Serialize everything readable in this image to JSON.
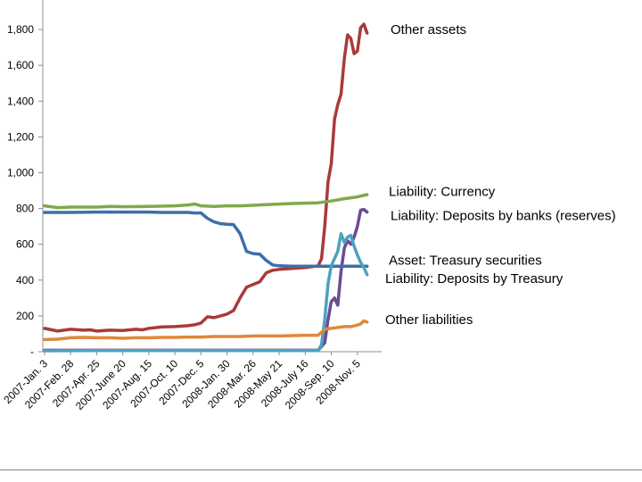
{
  "chart_data": {
    "type": "line",
    "title": "",
    "xlabel": "",
    "ylabel": "",
    "ylim": [
      0,
      1850
    ],
    "y_ticks": [
      {
        "value": 0,
        "label": "-"
      },
      {
        "value": 200,
        "label": "200"
      },
      {
        "value": 400,
        "label": "400"
      },
      {
        "value": 600,
        "label": "600"
      },
      {
        "value": 800,
        "label": "800"
      },
      {
        "value": 1000,
        "label": "1,000"
      },
      {
        "value": 1200,
        "label": "1,200"
      },
      {
        "value": 1400,
        "label": "1,400"
      },
      {
        "value": 1600,
        "label": "1,600"
      },
      {
        "value": 1800,
        "label": "1,800"
      }
    ],
    "x_tick_labels": [
      "2007-Jan. 3",
      "2007-Feb. 28",
      "2007-Apr. 25",
      "2007-June 20",
      "2007-Aug. 15",
      "2007-Oct. 10",
      "2007-Dec. 5",
      "2008-Jan. 30",
      "2008-Mar. 26",
      "2008-May 21",
      "2008-July 16",
      "2008-Sep. 10",
      "2008-Nov. 5"
    ],
    "x_tick_week_index": [
      0,
      8,
      16,
      24,
      32,
      40,
      48,
      56,
      64,
      72,
      80,
      88,
      96
    ],
    "x_range": [
      0,
      104
    ],
    "series": [
      {
        "name": "Other assets",
        "legend_label": "Other assets",
        "color": "#a93a3a",
        "label_value": 1800,
        "points": [
          [
            0,
            130
          ],
          [
            4,
            115
          ],
          [
            8,
            125
          ],
          [
            12,
            120
          ],
          [
            14,
            122
          ],
          [
            16,
            115
          ],
          [
            20,
            120
          ],
          [
            24,
            118
          ],
          [
            28,
            125
          ],
          [
            30,
            122
          ],
          [
            32,
            130
          ],
          [
            36,
            138
          ],
          [
            40,
            140
          ],
          [
            44,
            145
          ],
          [
            46,
            150
          ],
          [
            48,
            160
          ],
          [
            50,
            195
          ],
          [
            52,
            190
          ],
          [
            54,
            200
          ],
          [
            56,
            210
          ],
          [
            58,
            230
          ],
          [
            60,
            300
          ],
          [
            62,
            360
          ],
          [
            64,
            375
          ],
          [
            66,
            390
          ],
          [
            68,
            440
          ],
          [
            70,
            455
          ],
          [
            72,
            460
          ],
          [
            76,
            465
          ],
          [
            80,
            470
          ],
          [
            84,
            480
          ],
          [
            85,
            520
          ],
          [
            86,
            700
          ],
          [
            87,
            950
          ],
          [
            88,
            1050
          ],
          [
            89,
            1300
          ],
          [
            90,
            1380
          ],
          [
            91,
            1440
          ],
          [
            92,
            1640
          ],
          [
            93,
            1770
          ],
          [
            94,
            1750
          ],
          [
            95,
            1665
          ],
          [
            96,
            1680
          ],
          [
            97,
            1810
          ],
          [
            98,
            1830
          ],
          [
            99,
            1780
          ]
        ]
      },
      {
        "name": "Liability: Currency",
        "legend_label": "Liability: Currency",
        "color": "#7eaa4c",
        "label_value": 895,
        "points": [
          [
            0,
            815
          ],
          [
            4,
            805
          ],
          [
            8,
            808
          ],
          [
            16,
            808
          ],
          [
            20,
            812
          ],
          [
            24,
            810
          ],
          [
            32,
            812
          ],
          [
            40,
            815
          ],
          [
            44,
            820
          ],
          [
            46,
            825
          ],
          [
            48,
            815
          ],
          [
            52,
            812
          ],
          [
            56,
            815
          ],
          [
            60,
            815
          ],
          [
            64,
            818
          ],
          [
            68,
            822
          ],
          [
            72,
            825
          ],
          [
            76,
            828
          ],
          [
            80,
            830
          ],
          [
            84,
            832
          ],
          [
            88,
            842
          ],
          [
            92,
            855
          ],
          [
            96,
            865
          ],
          [
            99,
            878
          ]
        ]
      },
      {
        "name": "Liability: Deposits by banks (reserves)",
        "legend_label": "Liability: Deposits by banks (reserves)",
        "color": "#6b4b93",
        "label_value": 760,
        "points": [
          [
            0,
            8
          ],
          [
            20,
            8
          ],
          [
            40,
            8
          ],
          [
            60,
            8
          ],
          [
            80,
            8
          ],
          [
            84,
            8
          ],
          [
            86,
            50
          ],
          [
            87,
            180
          ],
          [
            88,
            280
          ],
          [
            89,
            300
          ],
          [
            90,
            260
          ],
          [
            91,
            450
          ],
          [
            92,
            580
          ],
          [
            93,
            620
          ],
          [
            94,
            600
          ],
          [
            95,
            640
          ],
          [
            96,
            700
          ],
          [
            97,
            790
          ],
          [
            98,
            795
          ],
          [
            99,
            780
          ]
        ]
      },
      {
        "name": "Asset: Treasury securities",
        "legend_label": "Asset: Treasury securities",
        "color": "#3d6fa8",
        "label_value": 510,
        "points": [
          [
            0,
            778
          ],
          [
            8,
            778
          ],
          [
            16,
            780
          ],
          [
            24,
            780
          ],
          [
            32,
            780
          ],
          [
            36,
            778
          ],
          [
            44,
            778
          ],
          [
            46,
            775
          ],
          [
            48,
            775
          ],
          [
            50,
            745
          ],
          [
            52,
            725
          ],
          [
            54,
            715
          ],
          [
            56,
            712
          ],
          [
            58,
            710
          ],
          [
            60,
            660
          ],
          [
            62,
            560
          ],
          [
            64,
            548
          ],
          [
            66,
            545
          ],
          [
            68,
            510
          ],
          [
            70,
            485
          ],
          [
            72,
            480
          ],
          [
            76,
            478
          ],
          [
            80,
            478
          ],
          [
            84,
            478
          ],
          [
            88,
            478
          ],
          [
            92,
            478
          ],
          [
            96,
            478
          ],
          [
            99,
            478
          ]
        ]
      },
      {
        "name": "Liability: Deposits by Treasury",
        "legend_label": "Liability: Deposits by Treasury",
        "color": "#4aa3c0",
        "label_value": 410,
        "points": [
          [
            0,
            5
          ],
          [
            16,
            6
          ],
          [
            32,
            6
          ],
          [
            48,
            6
          ],
          [
            64,
            6
          ],
          [
            80,
            6
          ],
          [
            84,
            6
          ],
          [
            85,
            40
          ],
          [
            86,
            180
          ],
          [
            87,
            380
          ],
          [
            88,
            480
          ],
          [
            89,
            520
          ],
          [
            90,
            560
          ],
          [
            91,
            660
          ],
          [
            92,
            610
          ],
          [
            93,
            640
          ],
          [
            94,
            650
          ],
          [
            95,
            590
          ],
          [
            96,
            540
          ],
          [
            97,
            500
          ],
          [
            98,
            470
          ],
          [
            99,
            430
          ]
        ]
      },
      {
        "name": "Other liabilities",
        "legend_label": "Other liabilities",
        "color": "#e0883a",
        "label_value": 180,
        "points": [
          [
            0,
            68
          ],
          [
            4,
            70
          ],
          [
            8,
            78
          ],
          [
            12,
            80
          ],
          [
            16,
            78
          ],
          [
            20,
            78
          ],
          [
            24,
            75
          ],
          [
            28,
            78
          ],
          [
            32,
            78
          ],
          [
            36,
            80
          ],
          [
            40,
            80
          ],
          [
            44,
            82
          ],
          [
            48,
            82
          ],
          [
            52,
            85
          ],
          [
            56,
            85
          ],
          [
            60,
            85
          ],
          [
            64,
            88
          ],
          [
            68,
            88
          ],
          [
            72,
            88
          ],
          [
            76,
            90
          ],
          [
            80,
            92
          ],
          [
            84,
            92
          ],
          [
            86,
            125
          ],
          [
            88,
            130
          ],
          [
            90,
            135
          ],
          [
            92,
            140
          ],
          [
            94,
            140
          ],
          [
            96,
            148
          ],
          [
            97,
            155
          ],
          [
            98,
            172
          ],
          [
            99,
            165
          ]
        ]
      }
    ]
  }
}
